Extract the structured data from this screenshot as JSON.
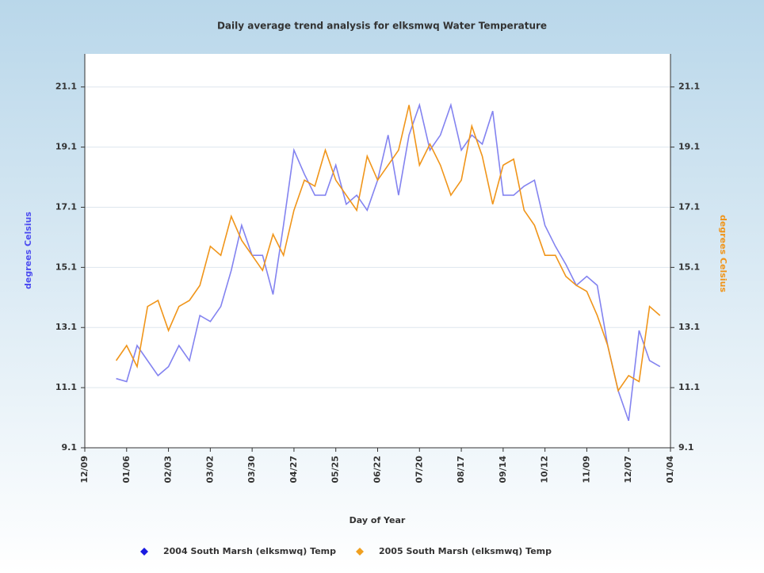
{
  "chart_data": {
    "type": "line",
    "title": "Daily average trend analysis for elksmwq Water Temperature",
    "x_label": "Day of Year",
    "y_label": "degrees Celsius",
    "y2_label": "degrees Celsius",
    "categories": [
      "12/09",
      null,
      null,
      null,
      "01/06",
      null,
      null,
      null,
      "02/03",
      null,
      null,
      null,
      "03/02",
      null,
      null,
      null,
      "03/30",
      null,
      null,
      null,
      "04/27",
      null,
      null,
      null,
      "05/25",
      null,
      null,
      null,
      "06/22",
      null,
      null,
      null,
      "07/20",
      null,
      null,
      null,
      "08/17",
      null,
      null,
      null,
      "09/14",
      null,
      null,
      null,
      "10/12",
      null,
      null,
      null,
      "11/09",
      null,
      null,
      null,
      "12/07",
      null,
      null,
      null,
      "01/04"
    ],
    "ylim": [
      9.1,
      22.2
    ],
    "yticks": [
      9.1,
      11.1,
      13.1,
      15.1,
      17.1,
      19.1,
      21.1
    ],
    "y2lim": [
      9.1,
      22.2
    ],
    "y2ticks": [
      9.1,
      11.1,
      13.1,
      15.1,
      17.1,
      19.1,
      21.1
    ],
    "grid": true,
    "legend": "bottom",
    "series": [
      {
        "name": "2004 South Marsh (elksmwq) Temp",
        "color": "#8383f0",
        "marker_color": "#1a1ae0",
        "values": [
          null,
          null,
          null,
          11.4,
          11.3,
          12.5,
          12.0,
          11.5,
          11.8,
          12.5,
          12.0,
          13.5,
          13.3,
          13.8,
          15.0,
          16.5,
          15.5,
          15.5,
          14.2,
          16.5,
          19.0,
          18.2,
          17.5,
          17.5,
          18.5,
          17.2,
          17.5,
          17.0,
          18.0,
          19.5,
          17.5,
          19.5,
          20.5,
          19.0,
          19.5,
          20.5,
          19.0,
          19.5,
          19.2,
          20.3,
          17.5,
          17.5,
          17.8,
          18.0,
          16.5,
          15.8,
          15.2,
          14.5,
          14.8,
          14.5,
          12.5,
          11.0,
          10.0,
          13.0,
          12.0,
          11.8,
          null
        ]
      },
      {
        "name": "2005 South Marsh (elksmwq) Temp",
        "color": "#f0951a",
        "marker_color": "#f0a020",
        "axis": "y2",
        "values": [
          null,
          null,
          null,
          12.0,
          12.5,
          11.8,
          13.8,
          14.0,
          13.0,
          13.8,
          14.0,
          14.5,
          15.8,
          15.5,
          16.8,
          16.0,
          15.5,
          15.0,
          16.2,
          15.5,
          17.0,
          18.0,
          17.8,
          19.0,
          18.0,
          17.5,
          17.0,
          18.8,
          18.0,
          18.5,
          19.0,
          20.5,
          18.5,
          19.2,
          18.5,
          17.5,
          18.0,
          19.8,
          18.8,
          17.2,
          18.5,
          18.7,
          17.0,
          16.5,
          15.5,
          15.5,
          14.8,
          14.5,
          14.3,
          13.5,
          12.5,
          11.0,
          11.5,
          11.3,
          13.8,
          13.5,
          null
        ]
      }
    ]
  }
}
